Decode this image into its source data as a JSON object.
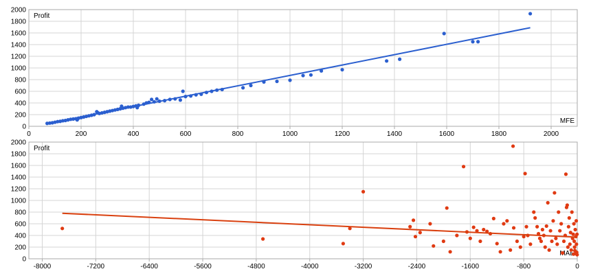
{
  "colors": {
    "grid": "#d4d4d4",
    "frame": "#aaaaaa",
    "mfe_points": "#2b5fcf",
    "mfe_line": "#2b5fcf",
    "mae_points": "#e03a12",
    "mae_line": "#d9400f",
    "text": "#000000"
  },
  "chart_data": [
    {
      "type": "scatter",
      "title": "",
      "ylabel": "Profit",
      "xlabel": "MFE",
      "xlim": [
        0,
        2100
      ],
      "ylim": [
        0,
        2000
      ],
      "xticks": [
        0,
        200,
        400,
        600,
        800,
        1000,
        1200,
        1400,
        1600,
        1800,
        2000
      ],
      "yticks": [
        0,
        200,
        400,
        600,
        800,
        1000,
        1200,
        1400,
        1600,
        1800,
        2000
      ],
      "grid": true,
      "trendline": {
        "x": [
          70,
          1920
        ],
        "y": [
          45,
          1690
        ]
      },
      "points": [
        [
          70,
          50
        ],
        [
          80,
          55
        ],
        [
          90,
          60
        ],
        [
          100,
          70
        ],
        [
          110,
          80
        ],
        [
          120,
          85
        ],
        [
          130,
          95
        ],
        [
          140,
          100
        ],
        [
          150,
          110
        ],
        [
          160,
          120
        ],
        [
          170,
          125
        ],
        [
          180,
          130
        ],
        [
          185,
          110
        ],
        [
          190,
          140
        ],
        [
          200,
          150
        ],
        [
          210,
          160
        ],
        [
          220,
          170
        ],
        [
          230,
          180
        ],
        [
          240,
          190
        ],
        [
          250,
          200
        ],
        [
          260,
          250
        ],
        [
          265,
          230
        ],
        [
          270,
          220
        ],
        [
          280,
          230
        ],
        [
          290,
          240
        ],
        [
          300,
          250
        ],
        [
          310,
          260
        ],
        [
          320,
          270
        ],
        [
          330,
          280
        ],
        [
          340,
          290
        ],
        [
          350,
          300
        ],
        [
          355,
          345
        ],
        [
          360,
          310
        ],
        [
          370,
          320
        ],
        [
          380,
          330
        ],
        [
          390,
          330
        ],
        [
          400,
          340
        ],
        [
          410,
          350
        ],
        [
          415,
          320
        ],
        [
          420,
          360
        ],
        [
          440,
          380
        ],
        [
          450,
          400
        ],
        [
          460,
          410
        ],
        [
          470,
          460
        ],
        [
          480,
          420
        ],
        [
          490,
          470
        ],
        [
          500,
          430
        ],
        [
          520,
          440
        ],
        [
          540,
          460
        ],
        [
          560,
          470
        ],
        [
          580,
          450
        ],
        [
          590,
          600
        ],
        [
          600,
          510
        ],
        [
          620,
          520
        ],
        [
          640,
          540
        ],
        [
          660,
          550
        ],
        [
          680,
          580
        ],
        [
          700,
          600
        ],
        [
          720,
          620
        ],
        [
          740,
          630
        ],
        [
          820,
          660
        ],
        [
          850,
          700
        ],
        [
          900,
          760
        ],
        [
          950,
          770
        ],
        [
          1000,
          790
        ],
        [
          1050,
          870
        ],
        [
          1080,
          880
        ],
        [
          1120,
          950
        ],
        [
          1200,
          970
        ],
        [
          1370,
          1120
        ],
        [
          1420,
          1150
        ],
        [
          1590,
          1590
        ],
        [
          1700,
          1450
        ],
        [
          1720,
          1450
        ],
        [
          1920,
          1930
        ]
      ]
    },
    {
      "type": "scatter",
      "title": "",
      "ylabel": "Profit",
      "xlabel": "MAE",
      "xlim": [
        -8200,
        0
      ],
      "ylim": [
        0,
        2000
      ],
      "xticks": [
        -8000,
        -7200,
        -6400,
        -5600,
        -4800,
        -4000,
        -3200,
        -2400,
        -1600,
        -800,
        0
      ],
      "yticks": [
        0,
        200,
        400,
        600,
        800,
        1000,
        1200,
        1400,
        1600,
        1800,
        2000
      ],
      "grid": true,
      "trendline": {
        "x": [
          -7700,
          0
        ],
        "y": [
          780,
          370
        ]
      },
      "points": [
        [
          -7700,
          520
        ],
        [
          -4700,
          340
        ],
        [
          -3500,
          260
        ],
        [
          -3400,
          520
        ],
        [
          -3200,
          1150
        ],
        [
          -2500,
          550
        ],
        [
          -2450,
          660
        ],
        [
          -2420,
          380
        ],
        [
          -2350,
          450
        ],
        [
          -2200,
          600
        ],
        [
          -2150,
          220
        ],
        [
          -2000,
          300
        ],
        [
          -1950,
          870
        ],
        [
          -1900,
          120
        ],
        [
          -1800,
          400
        ],
        [
          -1700,
          1580
        ],
        [
          -1650,
          460
        ],
        [
          -1600,
          350
        ],
        [
          -1550,
          540
        ],
        [
          -1500,
          480
        ],
        [
          -1450,
          300
        ],
        [
          -1400,
          500
        ],
        [
          -1350,
          470
        ],
        [
          -1300,
          430
        ],
        [
          -1250,
          690
        ],
        [
          -1200,
          260
        ],
        [
          -1150,
          120
        ],
        [
          -1100,
          600
        ],
        [
          -1050,
          650
        ],
        [
          -1000,
          150
        ],
        [
          -960,
          1930
        ],
        [
          -950,
          530
        ],
        [
          -900,
          300
        ],
        [
          -850,
          200
        ],
        [
          -800,
          380
        ],
        [
          -780,
          1460
        ],
        [
          -760,
          550
        ],
        [
          -740,
          400
        ],
        [
          -700,
          250
        ],
        [
          -650,
          800
        ],
        [
          -630,
          700
        ],
        [
          -600,
          550
        ],
        [
          -580,
          430
        ],
        [
          -560,
          350
        ],
        [
          -540,
          300
        ],
        [
          -520,
          500
        ],
        [
          -500,
          400
        ],
        [
          -480,
          200
        ],
        [
          -460,
          560
        ],
        [
          -440,
          960
        ],
        [
          -420,
          150
        ],
        [
          -400,
          480
        ],
        [
          -380,
          300
        ],
        [
          -360,
          650
        ],
        [
          -340,
          1130
        ],
        [
          -320,
          350
        ],
        [
          -300,
          250
        ],
        [
          -280,
          800
        ],
        [
          -260,
          480
        ],
        [
          -240,
          600
        ],
        [
          -220,
          100
        ],
        [
          -200,
          300
        ],
        [
          -180,
          400
        ],
        [
          -170,
          1450
        ],
        [
          -160,
          880
        ],
        [
          -150,
          920
        ],
        [
          -140,
          200
        ],
        [
          -130,
          550
        ],
        [
          -120,
          700
        ],
        [
          -110,
          250
        ],
        [
          -100,
          450
        ],
        [
          -90,
          150
        ],
        [
          -80,
          800
        ],
        [
          -70,
          350
        ],
        [
          -60,
          420
        ],
        [
          -55,
          80
        ],
        [
          -50,
          600
        ],
        [
          -45,
          300
        ],
        [
          -40,
          200
        ],
        [
          -35,
          140
        ],
        [
          -30,
          500
        ],
        [
          -25,
          90
        ],
        [
          -20,
          380
        ],
        [
          -15,
          650
        ],
        [
          -12,
          250
        ],
        [
          -8,
          110
        ],
        [
          -4,
          420
        ],
        [
          -2,
          70
        ]
      ]
    }
  ]
}
